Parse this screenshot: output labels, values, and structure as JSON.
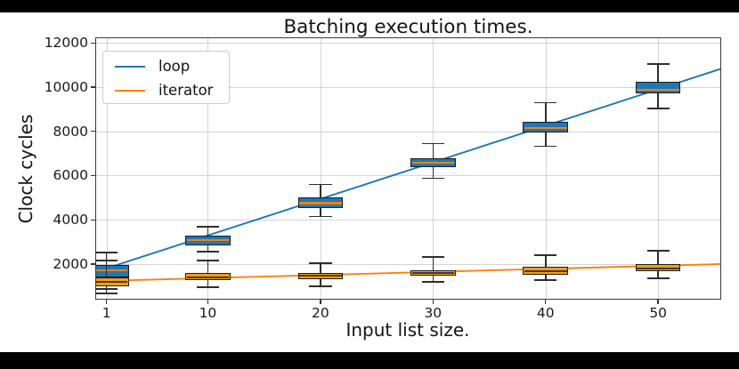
{
  "window": {
    "background": "#000000",
    "figure_background": "#ffffff"
  },
  "chart_data": {
    "type": "boxplot",
    "title": "Batching execution times.",
    "xlabel": "Input list size.",
    "ylabel": "Clock cycles",
    "grid": true,
    "legend_position": "upper-left",
    "xlim": [
      0,
      55.6
    ],
    "ylim": [
      390,
      12250
    ],
    "x_tick_values": [
      1,
      10,
      20,
      30,
      40,
      50
    ],
    "x_tick_labels": [
      "1",
      "10",
      "20",
      "30",
      "40",
      "50"
    ],
    "y_tick_values": [
      2000,
      4000,
      6000,
      8000,
      10000,
      12000
    ],
    "y_tick_labels": [
      "2000",
      "4000",
      "6000",
      "8000",
      "10000",
      "12000"
    ],
    "box_width_units": 4,
    "cap_width_units": 2,
    "colors": {
      "grid": "#d4d4d4",
      "spine": "#3a3a3a",
      "whisker": "#2e2e2e"
    },
    "legend": {
      "entries": [
        {
          "label": "loop",
          "color": "#1f77b4"
        },
        {
          "label": "iterator",
          "color": "#ff7f0e"
        }
      ]
    },
    "series": [
      {
        "name": "loop",
        "box_fill": "#1f77b4",
        "median_color": "#ff7f0e",
        "boxes": [
          {
            "pos": 1,
            "low": 675,
            "q1": 1400,
            "med": 1720,
            "q3": 1960,
            "high": 2520
          },
          {
            "pos": 10,
            "low": 2560,
            "q1": 2840,
            "med": 3085,
            "q3": 3290,
            "high": 3690
          },
          {
            "pos": 20,
            "low": 4150,
            "q1": 4550,
            "med": 4750,
            "q3": 5000,
            "high": 5600
          },
          {
            "pos": 30,
            "low": 5880,
            "q1": 6390,
            "med": 6590,
            "q3": 6790,
            "high": 7440
          },
          {
            "pos": 40,
            "low": 7320,
            "q1": 7960,
            "med": 8160,
            "q3": 8440,
            "high": 9290
          },
          {
            "pos": 50,
            "low": 9040,
            "q1": 9720,
            "med": 9880,
            "q3": 10240,
            "high": 11050
          }
        ]
      },
      {
        "name": "iterator",
        "box_fill": "#ff9c12",
        "median_color": "#3a3a3a",
        "boxes": [
          {
            "pos": 1,
            "low": 875,
            "q1": 1000,
            "med": 1200,
            "q3": 1400,
            "high": 2160
          },
          {
            "pos": 10,
            "low": 950,
            "q1": 1275,
            "med": 1400,
            "q3": 1600,
            "high": 2160
          },
          {
            "pos": 20,
            "low": 995,
            "q1": 1320,
            "med": 1480,
            "q3": 1600,
            "high": 2040
          },
          {
            "pos": 30,
            "low": 1200,
            "q1": 1480,
            "med": 1600,
            "q3": 1720,
            "high": 2320
          },
          {
            "pos": 40,
            "low": 1280,
            "q1": 1520,
            "med": 1680,
            "q3": 1880,
            "high": 2400
          },
          {
            "pos": 50,
            "low": 1360,
            "q1": 1680,
            "med": 1800,
            "q3": 2000,
            "high": 2600
          }
        ]
      }
    ],
    "fit_lines": [
      {
        "name": "loop-fit",
        "color": "#1f77b4",
        "x": [
          0,
          55.6
        ],
        "y": [
          1640,
          10830
        ]
      },
      {
        "name": "iterator-fit",
        "color": "#ff7f0e",
        "x": [
          0,
          55.6
        ],
        "y": [
          1225,
          2000
        ]
      }
    ]
  }
}
